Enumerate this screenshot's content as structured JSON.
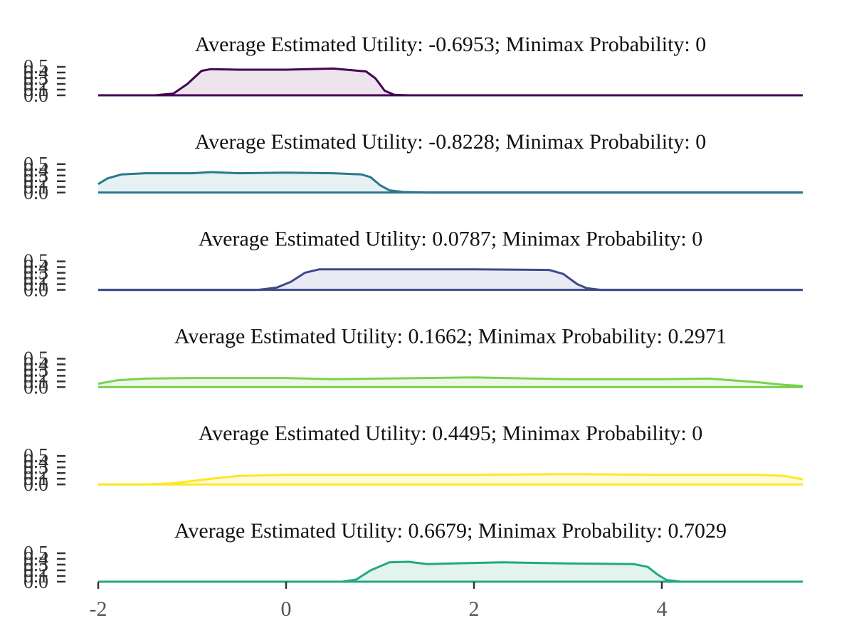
{
  "chart_data": {
    "type": "area",
    "x_axis": {
      "range": [
        -2,
        5.5
      ],
      "ticks": [
        -2,
        0,
        2,
        4
      ],
      "tick_labels": [
        "-2",
        "0",
        "2",
        "4"
      ]
    },
    "y_axis": {
      "range": [
        0,
        0.5
      ],
      "tick_labels": [
        "0.0",
        "0.1",
        "0.2",
        "0.3",
        "0.4",
        "0.5"
      ]
    },
    "grid": false,
    "legend": "none",
    "panels": [
      {
        "title": "Average Estimated Utility: -0.6953; Minimax Probability: 0",
        "color": "#440154",
        "fill": "#ede4ee",
        "points": [
          [
            -2,
            0
          ],
          [
            -1.4,
            0
          ],
          [
            -1.2,
            0.03
          ],
          [
            -1.05,
            0.2
          ],
          [
            -0.9,
            0.43
          ],
          [
            -0.8,
            0.46
          ],
          [
            -0.5,
            0.45
          ],
          [
            0,
            0.45
          ],
          [
            0.5,
            0.47
          ],
          [
            0.85,
            0.42
          ],
          [
            0.95,
            0.3
          ],
          [
            1.05,
            0.08
          ],
          [
            1.15,
            0.01
          ],
          [
            1.3,
            0
          ],
          [
            5.5,
            0
          ]
        ]
      },
      {
        "title": "Average Estimated Utility: -0.8228; Minimax Probability: 0",
        "color": "#2a788e",
        "fill": "#e5f1f3",
        "points": [
          [
            -2,
            0.15
          ],
          [
            -1.9,
            0.25
          ],
          [
            -1.75,
            0.32
          ],
          [
            -1.5,
            0.34
          ],
          [
            -1,
            0.34
          ],
          [
            -0.8,
            0.36
          ],
          [
            -0.5,
            0.34
          ],
          [
            0,
            0.35
          ],
          [
            0.5,
            0.34
          ],
          [
            0.8,
            0.32
          ],
          [
            0.9,
            0.27
          ],
          [
            1,
            0.13
          ],
          [
            1.1,
            0.04
          ],
          [
            1.25,
            0.01
          ],
          [
            1.5,
            0
          ],
          [
            5.5,
            0
          ]
        ]
      },
      {
        "title": "Average Estimated Utility: 0.0787; Minimax Probability: 0",
        "color": "#3e4a89",
        "fill": "#e9eaf4",
        "points": [
          [
            -2,
            0
          ],
          [
            -0.3,
            0
          ],
          [
            -0.1,
            0.04
          ],
          [
            0.05,
            0.14
          ],
          [
            0.2,
            0.3
          ],
          [
            0.35,
            0.36
          ],
          [
            1,
            0.36
          ],
          [
            2,
            0.36
          ],
          [
            2.8,
            0.35
          ],
          [
            2.95,
            0.28
          ],
          [
            3.1,
            0.1
          ],
          [
            3.2,
            0.03
          ],
          [
            3.35,
            0
          ],
          [
            5.5,
            0
          ]
        ]
      },
      {
        "title": "Average Estimated Utility: 0.1662; Minimax Probability: 0.2971",
        "color": "#7ad151",
        "fill": "#edf8e6",
        "points": [
          [
            -2,
            0.06
          ],
          [
            -1.8,
            0.12
          ],
          [
            -1.5,
            0.15
          ],
          [
            -1,
            0.16
          ],
          [
            0,
            0.16
          ],
          [
            0.5,
            0.14
          ],
          [
            1,
            0.15
          ],
          [
            2,
            0.17
          ],
          [
            3,
            0.14
          ],
          [
            4,
            0.14
          ],
          [
            4.5,
            0.15
          ],
          [
            5,
            0.09
          ],
          [
            5.3,
            0.04
          ],
          [
            5.5,
            0.02
          ]
        ]
      },
      {
        "title": "Average Estimated Utility: 0.4495; Minimax Probability: 0",
        "color": "#fde725",
        "fill": "#fefbe0",
        "points": [
          [
            -2,
            0
          ],
          [
            -1.5,
            0
          ],
          [
            -1.2,
            0.02
          ],
          [
            -0.8,
            0.1
          ],
          [
            -0.5,
            0.15
          ],
          [
            0,
            0.17
          ],
          [
            1,
            0.17
          ],
          [
            2,
            0.17
          ],
          [
            3,
            0.18
          ],
          [
            4,
            0.17
          ],
          [
            5,
            0.17
          ],
          [
            5.3,
            0.15
          ],
          [
            5.5,
            0.09
          ]
        ]
      },
      {
        "title": "Average Estimated Utility: 0.6679; Minimax Probability: 0.7029",
        "color": "#22a884",
        "fill": "#e3f4ee",
        "points": [
          [
            -2,
            0
          ],
          [
            0.6,
            0
          ],
          [
            0.75,
            0.04
          ],
          [
            0.9,
            0.2
          ],
          [
            1.1,
            0.34
          ],
          [
            1.3,
            0.35
          ],
          [
            1.5,
            0.31
          ],
          [
            2,
            0.33
          ],
          [
            2.3,
            0.34
          ],
          [
            3,
            0.32
          ],
          [
            3.7,
            0.31
          ],
          [
            3.85,
            0.26
          ],
          [
            3.95,
            0.13
          ],
          [
            4.05,
            0.03
          ],
          [
            4.2,
            0
          ],
          [
            5.5,
            0
          ]
        ]
      }
    ]
  }
}
